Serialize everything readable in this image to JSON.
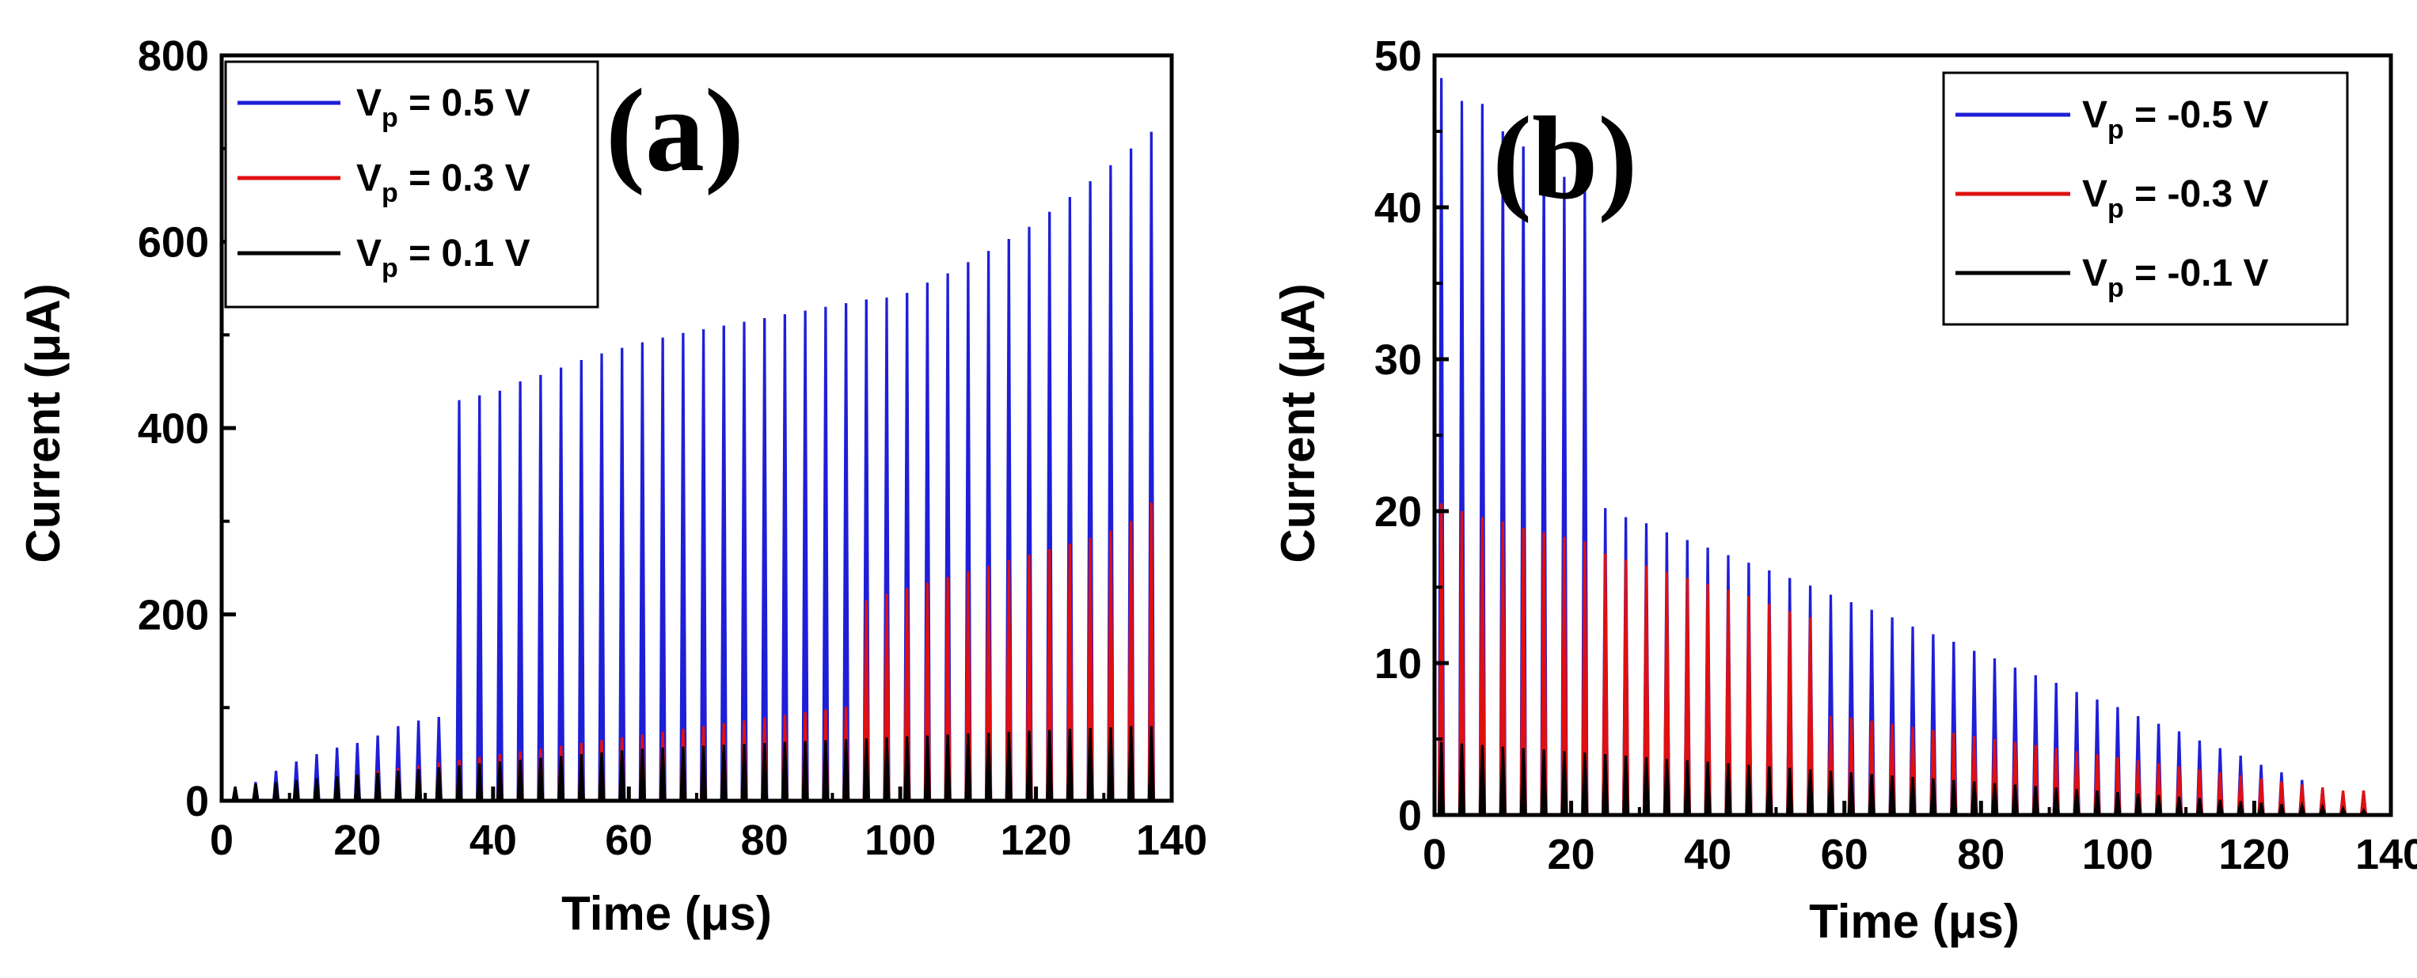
{
  "chart_data": [
    {
      "type": "line",
      "panel_label": "(a)",
      "xlabel": "Time (μs)",
      "ylabel": "Current (μA)",
      "xlim": [
        0,
        140
      ],
      "ylim": [
        0,
        800
      ],
      "xticks": [
        "0",
        "20",
        "40",
        "60",
        "80",
        "100",
        "120",
        "140"
      ],
      "yticks": [
        "0",
        "200",
        "400",
        "600",
        "800"
      ],
      "legend_position": "top-left",
      "series": [
        {
          "name": "V",
          "subscript": "p",
          "suffix": " = 0.5 V",
          "color": "#1f1fd8",
          "description": "pulse peaks",
          "x": [
            2,
            5,
            8,
            11,
            14,
            17,
            20,
            23,
            26,
            29,
            32,
            35,
            38,
            41,
            44,
            47,
            50,
            53,
            56,
            59,
            62,
            65,
            68,
            71,
            74,
            77,
            80,
            83,
            86,
            89,
            92,
            95,
            98,
            101,
            104,
            107,
            110,
            113,
            116,
            119,
            122,
            125,
            128,
            131,
            134,
            137
          ],
          "y": [
            10,
            20,
            32,
            42,
            50,
            57,
            62,
            70,
            80,
            86,
            90,
            430,
            435,
            440,
            450,
            457,
            465,
            473,
            480,
            486,
            492,
            497,
            502,
            506,
            510,
            514,
            518,
            522,
            526,
            530,
            534,
            538,
            540,
            545,
            556,
            566,
            578,
            590,
            603,
            616,
            632,
            648,
            665,
            682,
            700,
            718
          ]
        },
        {
          "name": "V",
          "subscript": "p",
          "suffix": " = 0.3 V",
          "color": "#e01010",
          "description": "pulse peaks",
          "x": [
            2,
            5,
            8,
            11,
            14,
            17,
            20,
            23,
            26,
            29,
            32,
            35,
            38,
            41,
            44,
            47,
            50,
            53,
            56,
            59,
            62,
            65,
            68,
            71,
            74,
            77,
            80,
            83,
            86,
            89,
            92,
            95,
            98,
            101,
            104,
            107,
            110,
            113,
            116,
            119,
            122,
            125,
            128,
            131,
            134,
            137
          ],
          "y": [
            5,
            8,
            12,
            16,
            20,
            24,
            28,
            32,
            35,
            38,
            41,
            44,
            47,
            50,
            53,
            56,
            59,
            62,
            65,
            68,
            71,
            74,
            77,
            80,
            83,
            86,
            89,
            92,
            95,
            98,
            101,
            215,
            222,
            228,
            234,
            240,
            246,
            252,
            258,
            264,
            270,
            276,
            282,
            290,
            300,
            320
          ]
        },
        {
          "name": "V",
          "subscript": "p",
          "suffix": " = 0.1 V",
          "color": "#000000",
          "description": "pulse peaks",
          "x": [
            2,
            5,
            8,
            11,
            14,
            17,
            20,
            23,
            26,
            29,
            32,
            35,
            38,
            41,
            44,
            47,
            50,
            53,
            56,
            59,
            62,
            65,
            68,
            71,
            74,
            77,
            80,
            83,
            86,
            89,
            92,
            95,
            98,
            101,
            104,
            107,
            110,
            113,
            116,
            119,
            122,
            125,
            128,
            131,
            134,
            137
          ],
          "y": [
            15,
            18,
            20,
            22,
            24,
            26,
            28,
            30,
            32,
            34,
            36,
            38,
            40,
            42,
            44,
            46,
            48,
            50,
            52,
            54,
            56,
            57,
            58,
            59,
            60,
            61,
            62,
            63,
            64,
            65,
            66,
            67,
            68,
            69,
            70,
            71,
            72,
            73,
            74,
            75,
            76,
            77,
            78,
            79,
            80,
            80
          ]
        }
      ]
    },
    {
      "type": "line",
      "panel_label": "(b)",
      "xlabel": "Time (μs)",
      "ylabel": "Current (μA)",
      "xlim": [
        0,
        140
      ],
      "ylim": [
        0,
        50
      ],
      "xticks": [
        "0",
        "20",
        "40",
        "60",
        "80",
        "100",
        "120",
        "140"
      ],
      "yticks": [
        "0",
        "10",
        "20",
        "30",
        "40",
        "50"
      ],
      "legend_position": "top-right",
      "series": [
        {
          "name": "V",
          "subscript": "p",
          "suffix": " = -0.5 V",
          "color": "#1f1fd8",
          "description": "pulse peaks",
          "x": [
            1,
            4,
            7,
            10,
            13,
            16,
            19,
            22,
            25,
            28,
            31,
            34,
            37,
            40,
            43,
            46,
            49,
            52,
            55,
            58,
            61,
            64,
            67,
            70,
            73,
            76,
            79,
            82,
            85,
            88,
            91,
            94,
            97,
            100,
            103,
            106,
            109,
            112,
            115,
            118,
            121,
            124,
            127,
            130,
            133,
            136
          ],
          "y": [
            48.5,
            47,
            46.8,
            45,
            44,
            43,
            42,
            41.5,
            20.2,
            19.6,
            19.2,
            18.6,
            18.1,
            17.6,
            17.1,
            16.6,
            16.1,
            15.6,
            15.1,
            14.5,
            14,
            13.5,
            13,
            12.4,
            11.9,
            11.4,
            10.8,
            10.3,
            9.7,
            9.2,
            8.7,
            8.1,
            7.6,
            7.1,
            6.5,
            6,
            5.5,
            4.9,
            4.4,
            3.9,
            3.3,
            2.8,
            2.3,
            1.8,
            1.5,
            1.6
          ]
        },
        {
          "name": "V",
          "subscript": "p",
          "suffix": " = -0.3 V",
          "color": "#e01010",
          "description": "pulse peaks",
          "x": [
            1,
            4,
            7,
            10,
            13,
            16,
            19,
            22,
            25,
            28,
            31,
            34,
            37,
            40,
            43,
            46,
            49,
            52,
            55,
            58,
            61,
            64,
            67,
            70,
            73,
            76,
            79,
            82,
            85,
            88,
            91,
            94,
            97,
            100,
            103,
            106,
            109,
            112,
            115,
            118,
            121,
            124,
            127,
            130,
            133,
            136
          ],
          "y": [
            20.5,
            20,
            19.6,
            19.3,
            18.9,
            18.6,
            18.3,
            18,
            17.2,
            16.8,
            16.4,
            16,
            15.6,
            15.2,
            14.8,
            14.4,
            13.9,
            13.4,
            13,
            6.5,
            6.4,
            6.2,
            6,
            5.8,
            5.6,
            5.4,
            5.2,
            5,
            4.8,
            4.6,
            4.4,
            4.2,
            4,
            3.8,
            3.6,
            3.4,
            3.2,
            3,
            2.8,
            2.6,
            2.4,
            2.2,
            2,
            1.8,
            1.6,
            1.6
          ]
        },
        {
          "name": "V",
          "subscript": "p",
          "suffix": " = -0.1 V",
          "color": "#000000",
          "description": "pulse peaks",
          "x": [
            1,
            4,
            7,
            10,
            13,
            16,
            19,
            22,
            25,
            28,
            31,
            34,
            37,
            40,
            43,
            46,
            49,
            52,
            55,
            58,
            61,
            64,
            67,
            70,
            73,
            76,
            79,
            82,
            85,
            88,
            91,
            94,
            97,
            100,
            103,
            106,
            109,
            112,
            115,
            118,
            121,
            124,
            127,
            130,
            133,
            136
          ],
          "y": [
            4.8,
            4.7,
            4.6,
            4.5,
            4.4,
            4.3,
            4.2,
            4.1,
            4,
            3.9,
            3.8,
            3.7,
            3.6,
            3.5,
            3.4,
            3.3,
            3.2,
            3.1,
            3,
            2.9,
            2.8,
            2.7,
            2.6,
            2.5,
            2.4,
            2.3,
            2.2,
            2.1,
            2,
            1.9,
            1.8,
            1.7,
            1.6,
            1.5,
            1.4,
            1.3,
            1.2,
            1.1,
            1,
            0.9,
            0.8,
            0.7,
            0.6,
            0.5,
            0.4,
            0.3
          ]
        }
      ]
    }
  ]
}
